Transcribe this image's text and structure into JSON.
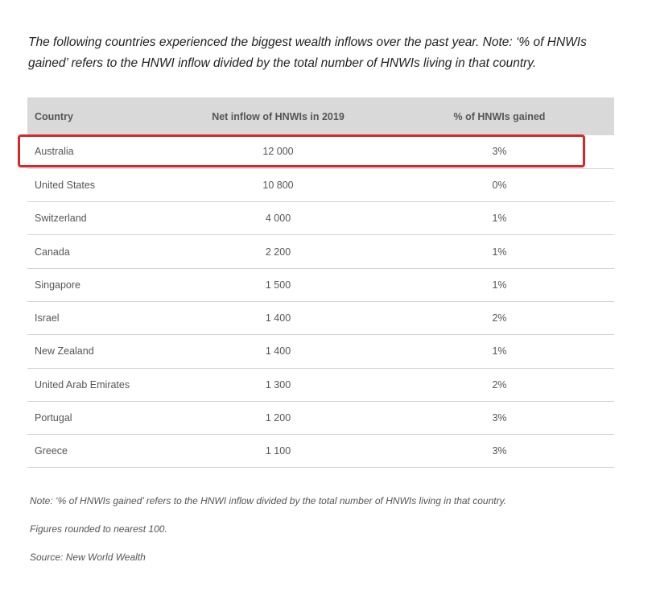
{
  "intro": "The following countries experienced the biggest wealth inflows over the past year. Note: ‘% of HNWIs gained’ refers to the HNWI inflow divided by the total number of HNWIs living in that country.",
  "table": {
    "headers": [
      "Country",
      "Net inflow of HNWIs in 2019",
      "% of HNWIs gained"
    ],
    "rows": [
      [
        "Australia",
        "12 000",
        "3%"
      ],
      [
        "United States",
        "10 800",
        "0%"
      ],
      [
        "Switzerland",
        "4 000",
        "1%"
      ],
      [
        "Canada",
        "2 200",
        "1%"
      ],
      [
        "Singapore",
        "1 500",
        "1%"
      ],
      [
        "Israel",
        "1 400",
        "2%"
      ],
      [
        "New Zealand",
        "1 400",
        "1%"
      ],
      [
        "United Arab Emirates",
        "1 300",
        "2%"
      ],
      [
        "Portugal",
        "1 200",
        "3%"
      ],
      [
        "Greece",
        "1 100",
        "3%"
      ]
    ]
  },
  "highlight_color": "#d62828",
  "notes": [
    "Note: ‘% of HNWIs gained’ refers to the HNWI inflow divided by the total number of HNWIs living in that country.",
    "Figures rounded to nearest 100.",
    "Source: New World Wealth"
  ]
}
